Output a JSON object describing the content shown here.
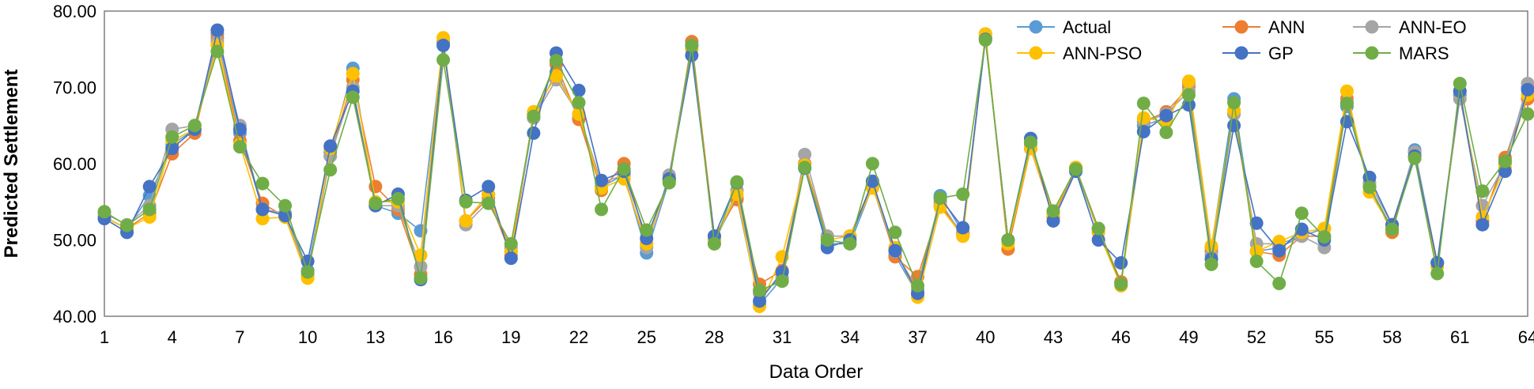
{
  "chart_data": {
    "type": "line",
    "title": "",
    "xlabel": "Data Order",
    "ylabel": "Predicted Settlement",
    "ylim": [
      40,
      80
    ],
    "yticks": [
      "40.00",
      "50.00",
      "60.00",
      "70.00",
      "80.00"
    ],
    "xticks": [
      1,
      4,
      7,
      10,
      13,
      16,
      19,
      22,
      25,
      28,
      31,
      34,
      37,
      40,
      43,
      46,
      49,
      52,
      55,
      58,
      61,
      64
    ],
    "x": [
      1,
      2,
      3,
      4,
      5,
      6,
      7,
      8,
      9,
      10,
      11,
      12,
      13,
      14,
      15,
      16,
      17,
      18,
      19,
      20,
      21,
      22,
      23,
      24,
      25,
      26,
      27,
      28,
      29,
      30,
      31,
      32,
      33,
      34,
      35,
      36,
      37,
      38,
      39,
      40,
      41,
      42,
      43,
      44,
      45,
      46,
      47,
      48,
      49,
      50,
      51,
      52,
      53,
      54,
      55,
      56,
      57,
      58,
      59,
      60,
      61,
      62,
      63,
      64
    ],
    "grid": false,
    "legend_position": "top-right",
    "series": [
      {
        "name": "Actual",
        "color": "#5B9BD5",
        "values": [
          53.0,
          51.5,
          55.8,
          62.5,
          64.5,
          77.0,
          64.0,
          54.0,
          53.5,
          46.0,
          61.5,
          72.5,
          54.5,
          53.5,
          51.2,
          76.0,
          52.5,
          56.0,
          48.5,
          66.0,
          72.0,
          66.0,
          57.0,
          58.5,
          48.3,
          57.8,
          75.5,
          50.0,
          55.5,
          41.5,
          45.0,
          60.0,
          49.5,
          49.5,
          57.0,
          48.0,
          42.8,
          55.8,
          51.0,
          76.5,
          50.0,
          62.0,
          53.0,
          59.3,
          51.0,
          44.5,
          65.0,
          66.0,
          70.5,
          49.0,
          68.5,
          48.5,
          49.0,
          50.5,
          51.5,
          67.5,
          57.0,
          51.5,
          61.8,
          47.0,
          69.0,
          52.5,
          60.5,
          70.0
        ]
      },
      {
        "name": "ANN",
        "color": "#ED7D31",
        "values": [
          53.0,
          51.5,
          53.5,
          61.3,
          64.0,
          76.5,
          63.0,
          54.8,
          53.0,
          45.3,
          61.0,
          71.0,
          57.0,
          54.0,
          45.5,
          75.8,
          52.5,
          55.5,
          48.0,
          66.5,
          73.0,
          65.8,
          56.5,
          60.0,
          49.5,
          58.0,
          76.0,
          50.5,
          55.3,
          44.2,
          46.0,
          60.0,
          50.5,
          50.5,
          57.5,
          47.8,
          45.2,
          54.5,
          50.8,
          77.0,
          48.8,
          62.0,
          53.0,
          59.5,
          51.5,
          44.5,
          65.5,
          66.8,
          70.0,
          48.5,
          66.5,
          48.5,
          48.0,
          50.5,
          50.5,
          68.5,
          57.0,
          51.0,
          61.5,
          47.0,
          69.5,
          52.5,
          60.8,
          68.5
        ]
      },
      {
        "name": "ANN-EO",
        "color": "#A5A5A5",
        "values": [
          53.5,
          52.0,
          54.5,
          64.5,
          65.0,
          76.0,
          65.0,
          54.0,
          53.5,
          45.5,
          61.0,
          70.0,
          54.5,
          54.5,
          46.5,
          76.0,
          52.0,
          55.0,
          49.0,
          66.0,
          71.0,
          66.5,
          57.5,
          58.5,
          49.0,
          58.5,
          75.5,
          49.5,
          56.5,
          43.0,
          45.0,
          61.2,
          50.5,
          50.5,
          57.0,
          48.5,
          43.5,
          55.0,
          50.5,
          76.5,
          50.0,
          62.5,
          53.5,
          59.5,
          51.5,
          44.0,
          65.5,
          66.5,
          69.5,
          48.0,
          66.5,
          49.5,
          49.5,
          50.5,
          49.0,
          68.0,
          57.5,
          52.0,
          61.5,
          47.0,
          68.5,
          54.5,
          60.0,
          70.5
        ]
      },
      {
        "name": "ANN-PSO",
        "color": "#FFC000",
        "values": [
          53.0,
          51.5,
          53.0,
          63.0,
          64.5,
          75.5,
          62.5,
          52.8,
          53.0,
          45.0,
          62.0,
          71.8,
          55.0,
          55.0,
          48.0,
          76.5,
          52.5,
          56.0,
          48.5,
          66.8,
          71.5,
          66.5,
          56.8,
          58.0,
          49.5,
          58.0,
          75.0,
          50.0,
          56.0,
          41.3,
          47.8,
          59.8,
          50.0,
          50.5,
          56.8,
          49.0,
          42.5,
          54.3,
          50.5,
          77.0,
          49.5,
          62.0,
          53.3,
          59.5,
          51.0,
          44.0,
          66.0,
          65.5,
          70.8,
          49.2,
          67.0,
          48.5,
          49.8,
          51.0,
          51.5,
          69.5,
          56.3,
          51.5,
          61.0,
          46.5,
          69.5,
          53.0,
          59.5,
          69.0
        ]
      },
      {
        "name": "GP",
        "color": "#4472C4",
        "values": [
          52.8,
          51.0,
          57.0,
          62.0,
          64.5,
          77.5,
          64.5,
          54.0,
          53.2,
          47.2,
          62.3,
          69.5,
          54.5,
          56.0,
          44.8,
          75.5,
          55.2,
          57.0,
          47.6,
          64.0,
          74.5,
          69.6,
          57.8,
          59.0,
          50.2,
          58.0,
          74.2,
          50.5,
          57.5,
          42.0,
          45.8,
          59.4,
          49.0,
          50.0,
          57.7,
          48.6,
          43.0,
          55.5,
          51.6,
          76.3,
          50.0,
          63.3,
          52.5,
          59.0,
          50.0,
          47.0,
          64.2,
          66.3,
          67.7,
          47.5,
          65.0,
          52.2,
          48.6,
          51.4,
          50.0,
          65.5,
          58.2,
          52.0,
          61.0,
          47.0,
          69.5,
          52.0,
          59.0,
          69.7
        ]
      },
      {
        "name": "MARS",
        "color": "#70AD47",
        "values": [
          53.7,
          51.9,
          54.0,
          63.5,
          65.0,
          74.7,
          62.2,
          57.4,
          54.5,
          45.8,
          59.2,
          68.7,
          54.8,
          55.4,
          45.0,
          73.6,
          55.0,
          54.8,
          49.5,
          66.2,
          73.5,
          68.0,
          54.0,
          59.3,
          51.3,
          57.5,
          75.5,
          49.5,
          57.6,
          43.4,
          44.6,
          59.5,
          50.0,
          49.5,
          60.0,
          51.0,
          44.0,
          55.5,
          56.0,
          76.2,
          50.0,
          62.8,
          53.8,
          59.3,
          51.5,
          44.2,
          67.9,
          64.1,
          69.0,
          46.8,
          68.0,
          47.2,
          44.3,
          53.5,
          50.4,
          67.9,
          56.9,
          51.4,
          60.7,
          45.6,
          70.5,
          56.4,
          60.3,
          66.5
        ]
      }
    ]
  }
}
